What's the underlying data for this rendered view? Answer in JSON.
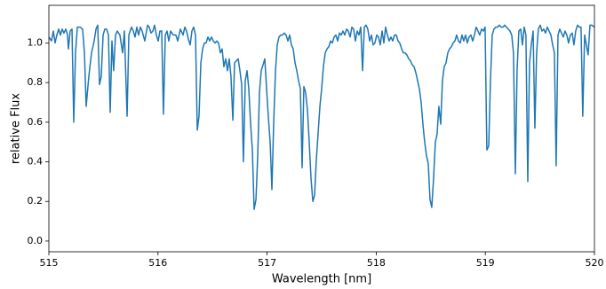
{
  "chart_data": {
    "type": "line",
    "xlabel": "Wavelength [nm]",
    "ylabel": "relative Flux",
    "xlim": [
      515,
      520
    ],
    "ylim": [
      -0.054,
      1.19
    ],
    "xticks": [
      515,
      516,
      517,
      518,
      519,
      520
    ],
    "yticks": [
      {
        "value": 0,
        "label": "0.0"
      },
      0.2,
      0.4,
      0.6,
      0.8,
      {
        "value": 1,
        "label": "1.0"
      }
    ],
    "grid": false,
    "x": [
      515.0,
      515.024,
      515.041,
      515.057,
      515.073,
      515.09,
      515.106,
      515.122,
      515.138,
      515.155,
      515.171,
      515.179,
      515.195,
      515.212,
      515.228,
      515.244,
      515.261,
      515.285,
      515.309,
      515.326,
      515.342,
      515.366,
      515.391,
      515.415,
      515.432,
      515.448,
      515.464,
      515.48,
      515.497,
      515.513,
      515.529,
      515.546,
      515.562,
      515.578,
      515.594,
      515.611,
      515.627,
      515.651,
      515.676,
      515.692,
      515.717,
      515.733,
      515.757,
      515.774,
      515.79,
      515.806,
      515.822,
      515.839,
      515.855,
      515.879,
      515.904,
      515.92,
      515.936,
      515.953,
      515.969,
      515.985,
      516.002,
      516.018,
      516.034,
      516.05,
      516.067,
      516.083,
      516.099,
      516.116,
      516.14,
      516.164,
      516.181,
      516.205,
      516.23,
      516.246,
      516.262,
      516.278,
      516.295,
      516.311,
      516.327,
      516.344,
      516.36,
      516.376,
      516.393,
      516.409,
      516.425,
      516.441,
      516.458,
      516.474,
      516.49,
      516.507,
      516.523,
      516.539,
      516.555,
      516.572,
      516.588,
      516.604,
      516.621,
      516.637,
      516.653,
      516.669,
      516.686,
      516.702,
      516.718,
      516.735,
      516.751,
      516.767,
      516.783,
      516.8,
      516.816,
      516.832,
      516.849,
      516.865,
      516.881,
      516.898,
      516.914,
      516.93,
      516.946,
      516.963,
      516.979,
      516.995,
      517.011,
      517.028,
      517.044,
      517.06,
      517.077,
      517.093,
      517.109,
      517.125,
      517.142,
      517.158,
      517.174,
      517.191,
      517.207,
      517.223,
      517.239,
      517.256,
      517.272,
      517.288,
      517.305,
      517.321,
      517.337,
      517.353,
      517.37,
      517.386,
      517.402,
      517.419,
      517.435,
      517.451,
      517.467,
      517.484,
      517.5,
      517.516,
      517.533,
      517.549,
      517.565,
      517.581,
      517.598,
      517.614,
      517.63,
      517.647,
      517.663,
      517.679,
      517.695,
      517.712,
      517.728,
      517.744,
      517.761,
      517.777,
      517.793,
      517.809,
      517.826,
      517.842,
      517.858,
      517.875,
      517.891,
      517.907,
      517.923,
      517.94,
      517.956,
      517.972,
      517.988,
      518.005,
      518.021,
      518.037,
      518.054,
      518.07,
      518.086,
      518.102,
      518.119,
      518.135,
      518.151,
      518.168,
      518.184,
      518.2,
      518.216,
      518.233,
      518.249,
      518.265,
      518.281,
      518.298,
      518.314,
      518.33,
      518.347,
      518.363,
      518.379,
      518.395,
      518.412,
      518.428,
      518.444,
      518.461,
      518.477,
      518.493,
      518.509,
      518.526,
      518.542,
      518.558,
      518.574,
      518.591,
      518.607,
      518.623,
      518.64,
      518.656,
      518.672,
      518.688,
      518.705,
      518.721,
      518.737,
      518.754,
      518.77,
      518.786,
      518.802,
      518.819,
      518.835,
      518.851,
      518.868,
      518.884,
      518.9,
      518.916,
      518.933,
      518.949,
      518.965,
      518.982,
      518.998,
      519.014,
      519.031,
      519.047,
      519.063,
      519.079,
      519.096,
      519.112,
      519.128,
      519.145,
      519.161,
      519.177,
      519.193,
      519.21,
      519.226,
      519.242,
      519.258,
      519.275,
      519.291,
      519.307,
      519.324,
      519.34,
      519.356,
      519.372,
      519.389,
      519.405,
      519.421,
      519.438,
      519.454,
      519.47,
      519.486,
      519.503,
      519.519,
      519.535,
      519.551,
      519.568,
      519.584,
      519.601,
      519.617,
      519.633,
      519.649,
      519.666,
      519.682,
      519.698,
      519.714,
      519.731,
      519.747,
      519.763,
      519.779,
      519.796,
      519.812,
      519.828,
      519.845,
      519.861,
      519.877,
      519.893,
      519.91,
      519.926,
      519.942,
      519.959,
      519.975,
      520.0
    ],
    "series": [
      {
        "color": "#1f77b4",
        "values": [
          1.03,
          1.01,
          1.06,
          1.0,
          1.04,
          1.07,
          1.04,
          1.07,
          1.05,
          1.07,
          1.04,
          0.97,
          1.06,
          1.07,
          0.6,
          0.95,
          1.08,
          1.08,
          1.07,
          0.95,
          0.68,
          0.83,
          0.95,
          1.01,
          1.07,
          1.09,
          0.79,
          0.83,
          1.04,
          1.07,
          1.07,
          1.04,
          0.65,
          1.01,
          0.86,
          1.04,
          1.06,
          1.04,
          0.95,
          1.06,
          0.63,
          1.04,
          1.08,
          1.06,
          1.03,
          1.08,
          1.04,
          1.08,
          1.06,
          1.01,
          1.09,
          1.08,
          1.05,
          1.06,
          1.09,
          1.04,
          1.01,
          1.06,
          1.06,
          0.64,
          1.04,
          1.06,
          1.01,
          1.06,
          1.04,
          1.04,
          1.01,
          1.07,
          1.04,
          1.08,
          1.06,
          1.02,
          0.99,
          1.06,
          1.08,
          1.04,
          0.56,
          0.63,
          0.9,
          0.97,
          1.0,
          1.0,
          1.03,
          1.01,
          1.03,
          1.01,
          1.0,
          1.01,
          1.0,
          0.95,
          0.97,
          0.88,
          0.92,
          0.86,
          0.92,
          0.83,
          0.61,
          0.9,
          0.91,
          0.92,
          0.86,
          0.79,
          0.4,
          0.81,
          0.86,
          0.77,
          0.59,
          0.46,
          0.16,
          0.21,
          0.43,
          0.75,
          0.86,
          0.89,
          0.92,
          0.77,
          0.63,
          0.5,
          0.26,
          0.59,
          0.86,
          0.99,
          1.03,
          1.04,
          1.04,
          1.05,
          1.04,
          1.01,
          1.04,
          0.99,
          0.97,
          0.9,
          0.86,
          0.81,
          0.77,
          0.37,
          0.78,
          0.75,
          0.66,
          0.5,
          0.32,
          0.2,
          0.23,
          0.41,
          0.54,
          0.68,
          0.77,
          0.88,
          0.95,
          0.97,
          0.98,
          1.01,
          1.0,
          1.03,
          1.04,
          1.01,
          1.05,
          1.04,
          1.06,
          1.04,
          1.07,
          1.06,
          1.03,
          1.08,
          1.07,
          1.01,
          1.06,
          1.04,
          1.08,
          0.86,
          1.08,
          1.09,
          1.07,
          1.01,
          1.04,
          0.99,
          1.0,
          1.04,
          1.03,
          0.99,
          1.06,
          1.0,
          1.08,
          1.04,
          1.01,
          1.03,
          1.01,
          1.04,
          1.04,
          1.01,
          1.0,
          0.97,
          0.95,
          0.95,
          0.94,
          0.92,
          0.91,
          0.89,
          0.88,
          0.85,
          0.81,
          0.77,
          0.7,
          0.59,
          0.5,
          0.43,
          0.39,
          0.21,
          0.17,
          0.32,
          0.5,
          0.54,
          0.68,
          0.59,
          0.81,
          0.88,
          0.9,
          0.95,
          0.97,
          0.98,
          1.0,
          1.01,
          1.04,
          1.01,
          1.0,
          1.04,
          1.01,
          1.04,
          1.0,
          1.03,
          1.04,
          1.01,
          1.04,
          1.08,
          1.06,
          1.04,
          1.07,
          1.06,
          1.08,
          0.46,
          0.48,
          0.81,
          1.04,
          1.07,
          1.08,
          1.08,
          1.09,
          1.08,
          1.08,
          1.09,
          1.08,
          1.07,
          1.06,
          1.04,
          0.95,
          0.34,
          0.86,
          1.06,
          1.07,
          0.99,
          1.08,
          1.04,
          0.3,
          0.9,
          0.99,
          1.06,
          0.57,
          0.95,
          1.07,
          1.09,
          1.06,
          1.07,
          1.05,
          1.08,
          1.06,
          1.04,
          0.99,
          0.95,
          0.38,
          1.04,
          1.07,
          1.05,
          1.03,
          1.06,
          1.04,
          1.0,
          1.04,
          1.05,
          0.99,
          1.06,
          1.09,
          1.08,
          1.08,
          0.63,
          1.04,
          0.99,
          0.94,
          1.09,
          1.09,
          1.08
        ]
      }
    ]
  }
}
